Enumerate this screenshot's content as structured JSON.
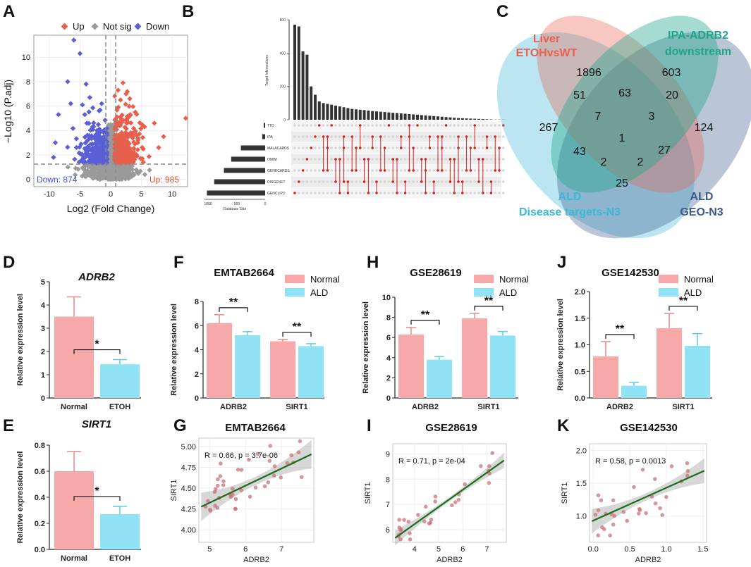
{
  "panel_labels": [
    "A",
    "B",
    "C",
    "D",
    "E",
    "F",
    "G",
    "H",
    "I",
    "J",
    "K"
  ],
  "volcano": {
    "legend": [
      "Up",
      "Not sig",
      "Down"
    ],
    "colors": {
      "up": "#e8604c",
      "ns": "#9a9a9a",
      "down": "#5b5fd6"
    },
    "ylabel": "−Log10 (P.adj)",
    "xlabel": "Log2 (Fold Change)",
    "down_count": "Down: 874",
    "up_count": "Up: 985",
    "xticks": [
      "-10",
      "-5",
      "0",
      "5",
      "10"
    ],
    "yticks": [
      "0",
      "2",
      "4",
      "6",
      "8",
      "10"
    ]
  },
  "upset": {
    "ylabel": "Target Intersections",
    "xlabel": "Database Size",
    "sets": [
      "TTD",
      "IPA",
      "MALACARDS",
      "OMIM",
      "GENECARDS",
      "DISGENET",
      "GENCLIP3"
    ],
    "set_sizes": [
      30,
      60,
      500,
      700,
      850,
      1050,
      1200
    ],
    "size_ticks": [
      "1000",
      "500",
      "0"
    ],
    "intersection_ticks": [
      "0",
      "200",
      "400",
      "600"
    ],
    "intersection_values": [
      570,
      560,
      410,
      390,
      200,
      150,
      110,
      100,
      95,
      90,
      85,
      80,
      75,
      70,
      65,
      62,
      60,
      58,
      55,
      52,
      50,
      48,
      46,
      44,
      42,
      40,
      38,
      36,
      34,
      32,
      30,
      28,
      26,
      24,
      22,
      20,
      18,
      16,
      14,
      12,
      10,
      9,
      8,
      7,
      6,
      5,
      4,
      3,
      2,
      1,
      1,
      1
    ]
  },
  "venn": {
    "sets": [
      {
        "name_line1": "Liver",
        "name_line2": "ETOHvsWT",
        "color": "#e8604c"
      },
      {
        "name_line1": "IPA-ADRB2",
        "name_line2": "downstream",
        "color": "#1fa58a"
      },
      {
        "name_line1": "ALD",
        "name_line2": "Disease targets-N3",
        "color": "#3bb8d6"
      },
      {
        "name_line1": "ALD",
        "name_line2": "GEO-N3",
        "color": "#3a5a8c"
      }
    ],
    "counts": [
      "1896",
      "603",
      "51",
      "63",
      "20",
      "267",
      "7",
      "3",
      "124",
      "1",
      "43",
      "2",
      "2",
      "27",
      "25"
    ]
  },
  "panel_D": {
    "title": "ADRB2",
    "ylabel": "Relative expression level",
    "categories": [
      "Normal",
      "ETOH"
    ],
    "values": [
      3.5,
      1.45
    ],
    "errors": [
      0.85,
      0.2
    ],
    "yticks": [
      "0",
      "1",
      "2",
      "3",
      "4",
      "5"
    ],
    "ylim": [
      0,
      5
    ],
    "sig": "*"
  },
  "panel_E": {
    "title": "SIRT1",
    "ylabel": "Relative expression level",
    "categories": [
      "Normal",
      "ETOH"
    ],
    "values": [
      0.6,
      0.27
    ],
    "errors": [
      0.15,
      0.06
    ],
    "yticks": [
      "0.0",
      "0.2",
      "0.4",
      "0.6",
      "0.8"
    ],
    "ylim": [
      0,
      0.8
    ],
    "sig": "*"
  },
  "legend_groups": [
    "Normal",
    "ALD"
  ],
  "colors": {
    "normal": "#f7a8a8",
    "ald": "#8fe3f5",
    "fit": "#1a6e1a",
    "point": "#c9737a",
    "band": "#bdbdbd"
  },
  "panel_F": {
    "title": "EMTAB2664",
    "ylabel": "Relative expression level",
    "groups": [
      "ADRB2",
      "SIRT1"
    ],
    "normal": [
      6.2,
      4.7
    ],
    "normal_err": [
      0.7,
      0.15
    ],
    "ald": [
      5.2,
      4.3
    ],
    "ald_err": [
      0.3,
      0.2
    ],
    "yticks": [
      "0",
      "2",
      "4",
      "6",
      "8"
    ],
    "ylim": [
      0,
      8
    ],
    "sig": [
      "**",
      "**"
    ]
  },
  "panel_H": {
    "title": "GSE28619",
    "ylabel": "Relative expression level",
    "groups": [
      "ADRB2",
      "SIRT1"
    ],
    "normal": [
      6.3,
      7.9
    ],
    "normal_err": [
      0.7,
      0.5
    ],
    "ald": [
      3.8,
      6.2
    ],
    "ald_err": [
      0.3,
      0.4
    ],
    "yticks": [
      "0",
      "2",
      "4",
      "6",
      "8",
      "10"
    ],
    "ylim": [
      0,
      10
    ],
    "sig": [
      "**",
      "**"
    ]
  },
  "panel_J": {
    "title": "GSE142530",
    "ylabel": "Relative expression level",
    "groups": [
      "ADRB2",
      "SIRT1"
    ],
    "normal": [
      0.78,
      1.31
    ],
    "normal_err": [
      0.28,
      0.28
    ],
    "ald": [
      0.23,
      0.98
    ],
    "ald_err": [
      0.06,
      0.23
    ],
    "yticks": [
      "0.0",
      "0.5",
      "1.0",
      "1.5",
      "2.0"
    ],
    "ylim": [
      0,
      2
    ],
    "sig": [
      "**",
      "**"
    ]
  },
  "panel_G": {
    "title": "EMTAB2664",
    "xlabel": "ADRB2",
    "ylabel": "SIRT1",
    "annotation": "R = 0.66, p = 3.7e-06",
    "xticks": [
      "5",
      "6",
      "7"
    ],
    "yticks": [
      "4.00",
      "4.25",
      "4.50",
      "4.75",
      "5.00"
    ],
    "xlim": [
      4.7,
      7.9
    ],
    "ylim": [
      3.85,
      5.1
    ]
  },
  "panel_I": {
    "title": "GSE28619",
    "xlabel": "ADRB2",
    "ylabel": "SIRT1",
    "annotation": "R = 0.71, p = 2e-04",
    "xticks": [
      "4",
      "5",
      "6",
      "7"
    ],
    "yticks": [
      "6",
      "7",
      "8",
      "9"
    ],
    "xlim": [
      3.1,
      7.8
    ],
    "ylim": [
      5.5,
      9.4
    ]
  },
  "panel_K": {
    "title": "GSE142530",
    "xlabel": "ADRB2",
    "ylabel": "SIRT1",
    "annotation": "R = 0.58, p = 0.0013",
    "xticks": [
      "0.0",
      "0.5",
      "1.0",
      "1.5"
    ],
    "yticks": [
      "1.0",
      "1.5",
      "2.0"
    ],
    "xlim": [
      -0.05,
      1.55
    ],
    "ylim": [
      0.6,
      2.1
    ]
  }
}
